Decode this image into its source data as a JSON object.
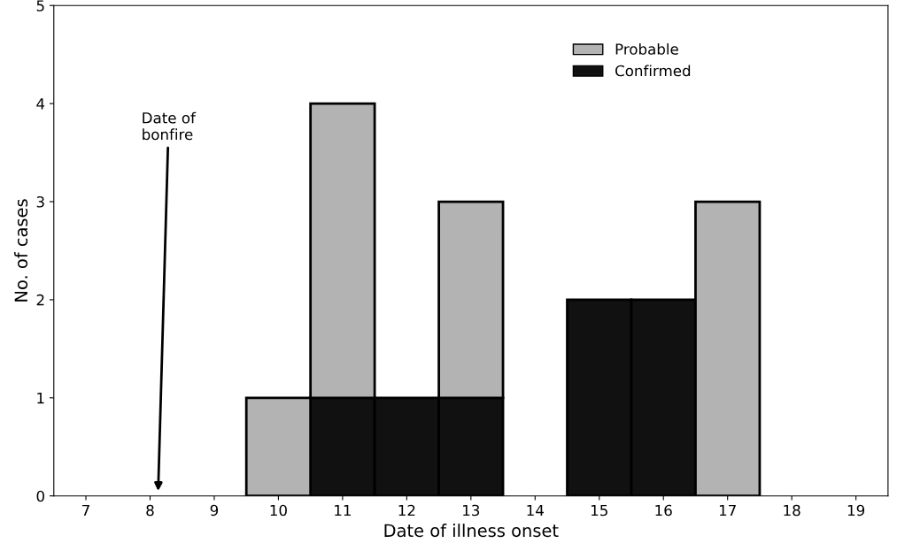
{
  "chart_data": {
    "type": "bar",
    "stacked": true,
    "xlabel": "Date of illness onset",
    "ylabel": "No. of cases",
    "categories": [
      "7",
      "8",
      "9",
      "10",
      "11",
      "12",
      "13",
      "14",
      "15",
      "16",
      "17",
      "18",
      "19"
    ],
    "series": [
      {
        "name": "Confirmed",
        "color": "#111111",
        "values": [
          null,
          null,
          null,
          null,
          1,
          1,
          1,
          null,
          2,
          2,
          null,
          null,
          null
        ]
      },
      {
        "name": "Probable",
        "color": "#b3b3b3",
        "values": [
          null,
          null,
          null,
          1,
          3,
          null,
          2,
          null,
          null,
          null,
          3,
          null,
          null
        ]
      }
    ],
    "ylim": [
      0,
      5
    ],
    "yticks": [
      0,
      1,
      2,
      3,
      4,
      5
    ],
    "grid": false,
    "legend": "top right",
    "annotations": [
      "Date of\nbonfire"
    ]
  }
}
